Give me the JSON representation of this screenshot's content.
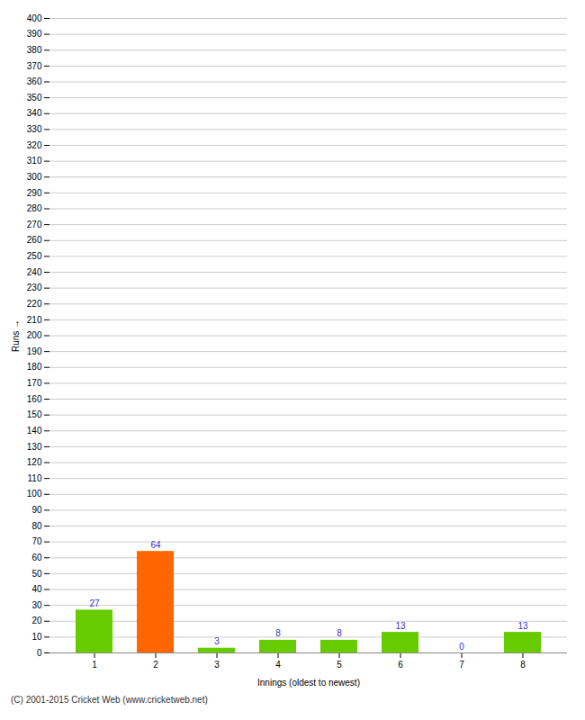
{
  "chart_data": {
    "type": "bar",
    "xlabel": "Innings (oldest to newest)",
    "ylabel": "Runs",
    "categories": [
      "1",
      "2",
      "3",
      "4",
      "5",
      "6",
      "7",
      "8"
    ],
    "values": [
      27,
      64,
      3,
      8,
      8,
      13,
      0,
      13
    ],
    "colors": [
      "#66cc00",
      "#ff6600",
      "#66cc00",
      "#66cc00",
      "#66cc00",
      "#66cc00",
      "#66cc00",
      "#66cc00"
    ],
    "ylim": [
      0,
      400
    ],
    "yticks": [
      0,
      10,
      20,
      30,
      40,
      50,
      60,
      70,
      80,
      90,
      100,
      110,
      120,
      130,
      140,
      150,
      160,
      170,
      180,
      190,
      200,
      210,
      220,
      230,
      240,
      250,
      260,
      270,
      280,
      290,
      300,
      310,
      320,
      330,
      340,
      350,
      360,
      370,
      380,
      390,
      400
    ],
    "grid": true,
    "data_labels": true,
    "caption": "(C) 2001-2015 Cricket Web (www.cricketweb.net)"
  }
}
